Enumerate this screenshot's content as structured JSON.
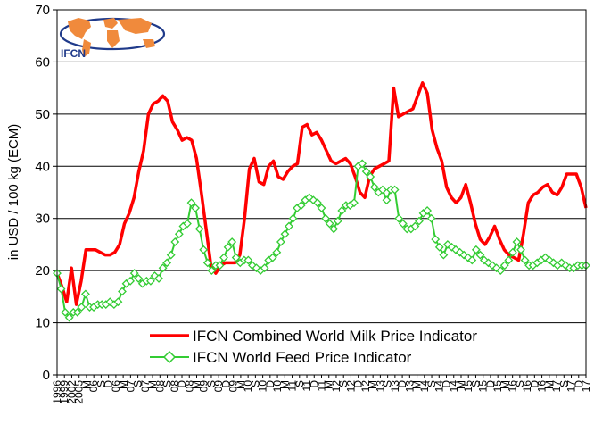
{
  "chart_data": {
    "type": "line",
    "title": "",
    "ylabel": "in USD / 100 kg (ECM)",
    "ylim": [
      0,
      70
    ],
    "yticks": [
      0,
      10,
      20,
      30,
      40,
      50,
      60,
      70
    ],
    "grid": "horizontal",
    "legend_position": "bottom-center inside plot",
    "logo_text": "IFCN",
    "x_tick_labels": [
      "1996",
      "1999",
      "2002",
      "2005",
      "M",
      "06",
      "S",
      "D",
      "06",
      "M",
      "07",
      "S",
      "07",
      "M",
      "08",
      "S",
      "08",
      "D",
      "08",
      "M",
      "09",
      "S",
      "09",
      "D",
      "09",
      "M",
      "10",
      "S",
      "10",
      "D",
      "10",
      "M",
      "11",
      "S",
      "11",
      "D",
      "11",
      "M",
      "12",
      "S",
      "12",
      "D",
      "12",
      "M",
      "13",
      "S",
      "13",
      "D",
      "13",
      "M",
      "14",
      "S",
      "14",
      "D",
      "14",
      "M",
      "15",
      "S",
      "15",
      "D",
      "15",
      "M",
      "16",
      "S",
      "16",
      "D",
      "16",
      "M",
      "17",
      "S",
      "17",
      "D",
      "17"
    ],
    "series": [
      {
        "name": "IFCN Combined World Milk Price Indicator",
        "color": "#ff0000",
        "marker": "none",
        "values": [
          19.5,
          17,
          14,
          20.5,
          13.5,
          18,
          24,
          24,
          24,
          23.5,
          23,
          23,
          23.5,
          25,
          29,
          31,
          34,
          39,
          43,
          50,
          52,
          52.5,
          53.5,
          52.5,
          48.5,
          47,
          45,
          45.5,
          45,
          41.5,
          35,
          28,
          21,
          19.5,
          21,
          21.5,
          21.5,
          21.5,
          23,
          30,
          39.5,
          41.5,
          37,
          36.5,
          40,
          41,
          38,
          37.5,
          39,
          40,
          40.5,
          47.5,
          48,
          46,
          46.5,
          45,
          43,
          41,
          40.5,
          41,
          41.5,
          40.5,
          38,
          35,
          34,
          38,
          39.5,
          40,
          40.5,
          41,
          55,
          49.5,
          50,
          50.5,
          51,
          53.5,
          56,
          54,
          47,
          43.5,
          41,
          36,
          34,
          33,
          34,
          36.5,
          33,
          29,
          26,
          25,
          26.5,
          28.5,
          26,
          24,
          23,
          22.5,
          22,
          27,
          33,
          34.5,
          35,
          36,
          36.5,
          35,
          34.5,
          36,
          38.5,
          38.5,
          38.5,
          36,
          32
        ]
      },
      {
        "name": "IFCN World Feed Price Indicator",
        "color": "#33cc33",
        "marker": "diamond",
        "values": [
          19.5,
          16.5,
          12,
          11,
          12,
          12,
          13,
          15.5,
          13,
          13,
          13.5,
          13.5,
          13.5,
          14,
          13.5,
          14,
          16,
          17.5,
          18,
          19.5,
          18.5,
          17.5,
          18,
          18,
          19,
          18.5,
          20.5,
          21.5,
          23,
          25.5,
          27,
          28.5,
          29,
          33,
          32,
          28,
          24,
          21.5,
          20,
          21,
          21,
          22.5,
          24.5,
          25.5,
          22.5,
          21.5,
          22,
          22,
          21,
          20.5,
          20,
          20.5,
          22,
          22.5,
          23.5,
          25.5,
          27,
          28.5,
          30,
          32,
          32.5,
          33.5,
          34,
          33.5,
          33,
          32,
          30,
          29,
          28,
          29.5,
          31.5,
          32.5,
          32.5,
          33,
          40,
          40.5,
          39,
          38,
          36,
          35,
          35.5,
          33.5,
          35.5,
          35.5,
          30,
          29,
          28,
          28,
          28.5,
          29.5,
          31,
          31.5,
          30,
          26,
          24.5,
          23,
          25,
          24.5,
          24,
          23.5,
          23,
          22.5,
          22,
          24,
          23,
          22,
          21.5,
          21,
          20.5,
          20,
          21,
          22,
          23.5,
          25.5,
          24,
          22,
          21,
          21,
          21.5,
          22,
          22.5,
          22,
          21.5,
          21,
          21.5,
          21,
          20.5,
          20.5,
          21,
          21,
          21
        ]
      }
    ]
  }
}
